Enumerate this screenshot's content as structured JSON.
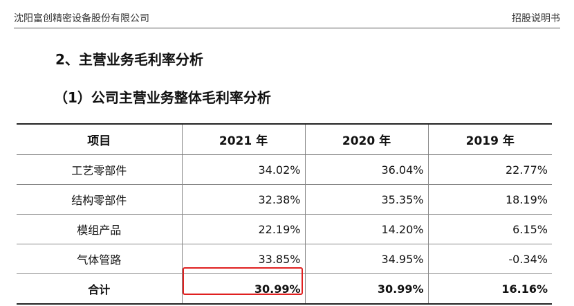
{
  "header": {
    "company": "沈阳富创精密设备股份有限公司",
    "doc_type": "招股说明书"
  },
  "section_title": "2、主营业务毛利率分析",
  "subsection_title": "（1）公司主营业务整体毛利率分析",
  "table": {
    "columns": [
      "项目",
      "2021 年",
      "2020 年",
      "2019 年"
    ],
    "rows": [
      {
        "item": "工艺零部件",
        "values": [
          "34.02%",
          "36.04%",
          "22.77%"
        ]
      },
      {
        "item": "结构零部件",
        "values": [
          "32.38%",
          "35.35%",
          "18.19%"
        ]
      },
      {
        "item": "模组产品",
        "values": [
          "22.19%",
          "14.20%",
          "6.15%"
        ]
      },
      {
        "item": "气体管路",
        "values": [
          "33.85%",
          "34.95%",
          "-0.34%"
        ]
      }
    ],
    "total": {
      "item": "合计",
      "values": [
        "30.99%",
        "30.99%",
        "16.16%"
      ]
    }
  },
  "highlight_color": "#e02020"
}
